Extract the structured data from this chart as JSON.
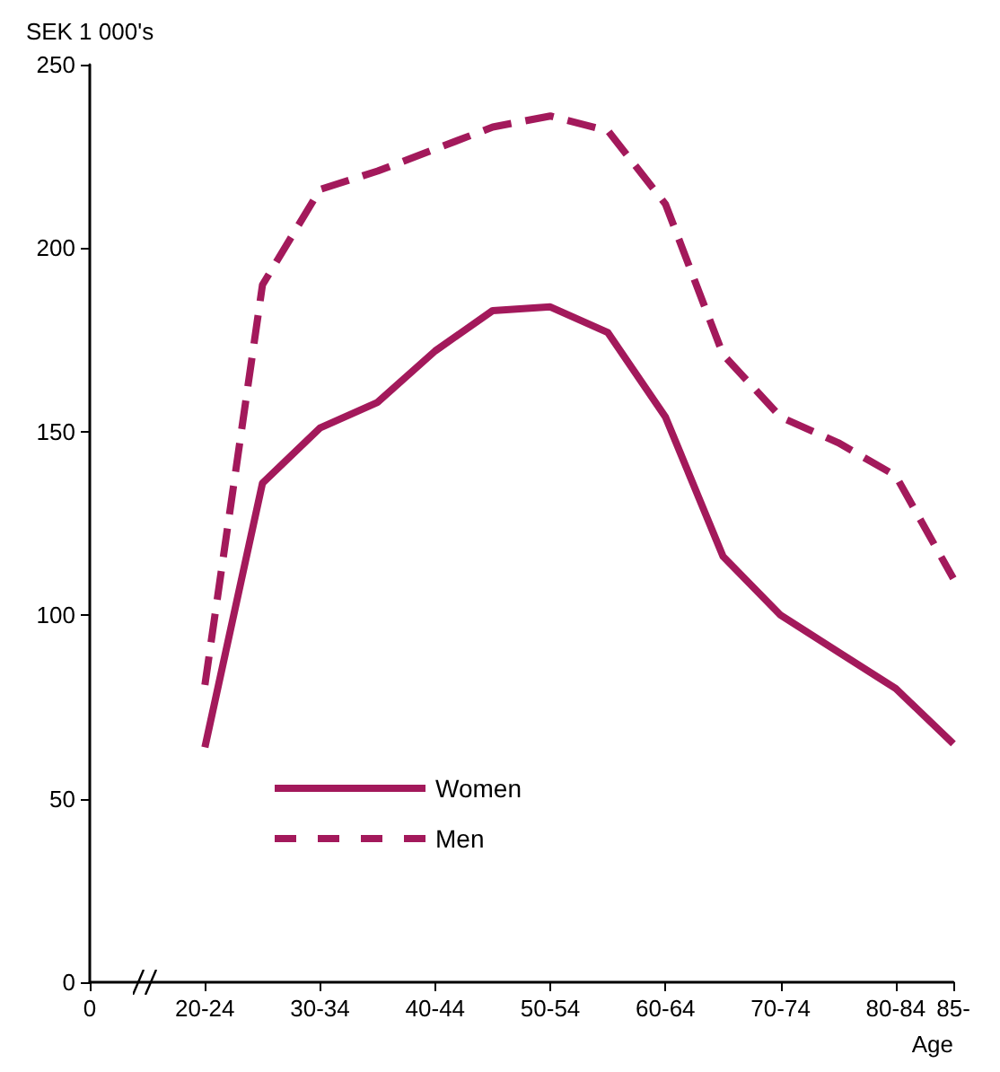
{
  "chart_data": {
    "type": "line",
    "ylabel": "SEK 1 000's",
    "xlabel": "Age",
    "categories": [
      "0",
      null,
      "20-24",
      null,
      "30-34",
      null,
      "40-44",
      null,
      "50-54",
      null,
      "60-64",
      null,
      "70-74",
      null,
      "80-84",
      "85-"
    ],
    "series": [
      {
        "name": "Women",
        "color": "#a3195b",
        "line_style": "solid",
        "values": [
          null,
          null,
          64,
          136,
          151,
          158,
          172,
          183,
          184,
          177,
          154,
          116,
          100,
          90,
          80,
          65
        ]
      },
      {
        "name": "Men",
        "color": "#a3195b",
        "line_style": "dashed",
        "values": [
          null,
          null,
          81,
          190,
          216,
          221,
          227,
          233,
          236,
          232,
          212,
          171,
          154,
          147,
          138,
          110
        ]
      }
    ],
    "ylim": [
      0,
      250
    ],
    "yticks": [
      0,
      50,
      100,
      150,
      200,
      250
    ],
    "grid": false,
    "legend": "bottom left",
    "marker": "none"
  }
}
